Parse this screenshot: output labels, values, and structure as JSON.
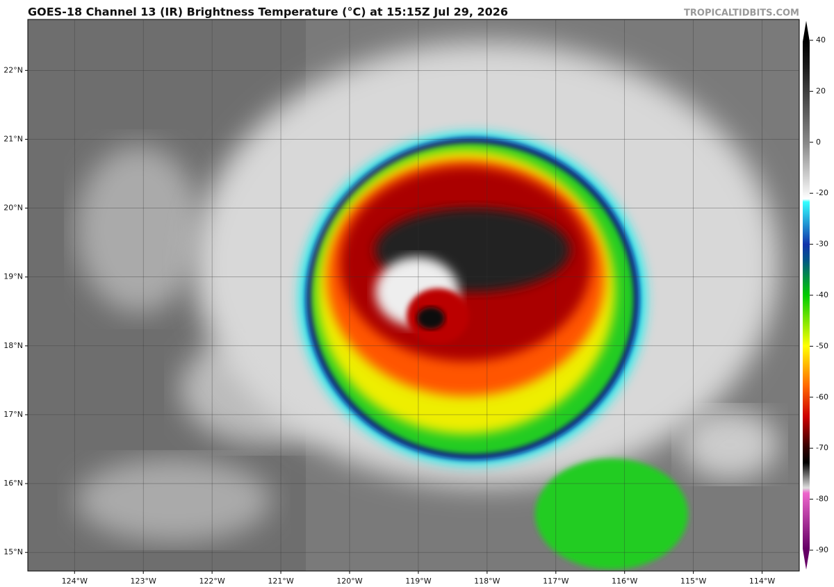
{
  "header": {
    "title": "GOES-18 Channel 13 (IR) Brightness Temperature (°C) at 15:15Z Jul 29, 2026",
    "credit": "TROPICALTIDBITS.COM"
  },
  "map": {
    "xlim": [
      -124.68,
      -113.46
    ],
    "ylim": [
      14.73,
      22.74
    ],
    "xticks": [
      {
        "value": -124,
        "label": "124°W"
      },
      {
        "value": -123,
        "label": "123°W"
      },
      {
        "value": -122,
        "label": "122°W"
      },
      {
        "value": -121,
        "label": "121°W"
      },
      {
        "value": -120,
        "label": "120°W"
      },
      {
        "value": -119,
        "label": "119°W"
      },
      {
        "value": -118,
        "label": "118°W"
      },
      {
        "value": -117,
        "label": "117°W"
      },
      {
        "value": -116,
        "label": "116°W"
      },
      {
        "value": -115,
        "label": "115°W"
      },
      {
        "value": -114,
        "label": "114°W"
      }
    ],
    "yticks": [
      {
        "value": 15,
        "label": "15°N"
      },
      {
        "value": 16,
        "label": "16°N"
      },
      {
        "value": 17,
        "label": "17°N"
      },
      {
        "value": 18,
        "label": "18°N"
      },
      {
        "value": 19,
        "label": "19°N"
      },
      {
        "value": 20,
        "label": "20°N"
      },
      {
        "value": 21,
        "label": "21°N"
      },
      {
        "value": 22,
        "label": "22°N"
      }
    ],
    "grid": true
  },
  "colorbar": {
    "ticks": [
      40,
      20,
      0,
      -20,
      -30,
      -40,
      -50,
      -60,
      -70,
      -80,
      -90
    ]
  }
}
